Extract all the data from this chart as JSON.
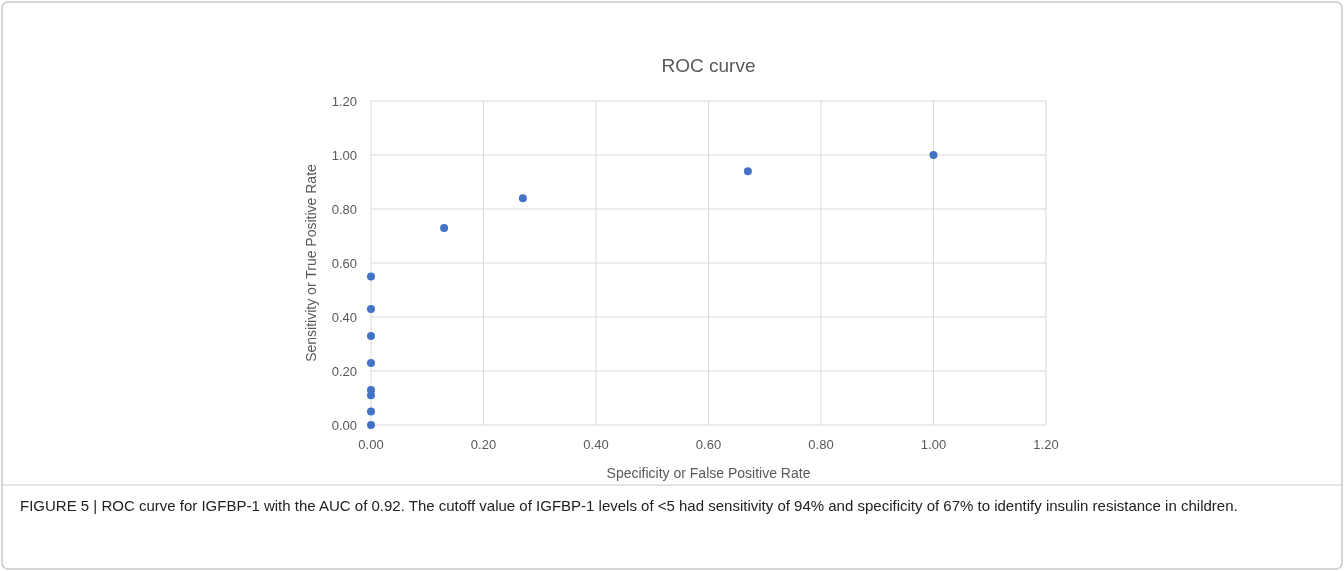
{
  "chart_data": {
    "type": "scatter",
    "title": "ROC curve",
    "xlabel": "Specificity or False Positive Rate",
    "ylabel": "Sensitivity or True Positive Rate",
    "x": [
      0,
      0,
      0,
      0,
      0,
      0,
      0,
      0,
      0.13,
      0.27,
      0.67,
      1.0
    ],
    "series": [
      {
        "color": "#4472c4",
        "values": [
          0,
          0.05,
          0.11,
          0.13,
          0.23,
          0.33,
          0.43,
          0.55,
          0.73,
          0.84,
          0.94,
          1.0
        ]
      }
    ],
    "xlim": [
      0,
      1.2
    ],
    "ylim": [
      0,
      1.2
    ],
    "xticks": [
      {
        "value": 0,
        "label": "0.00"
      },
      {
        "value": 0.2,
        "label": "0.20"
      },
      {
        "value": 0.4,
        "label": "0.40"
      },
      {
        "value": 0.6,
        "label": "0.60"
      },
      {
        "value": 0.8,
        "label": "0.80"
      },
      {
        "value": 1,
        "label": "1.00"
      },
      {
        "value": 1.2,
        "label": "1.20"
      }
    ],
    "yticks": [
      {
        "value": 0,
        "label": "0.00"
      },
      {
        "value": 0.2,
        "label": "0.20"
      },
      {
        "value": 0.4,
        "label": "0.40"
      },
      {
        "value": 0.6,
        "label": "0.60"
      },
      {
        "value": 0.8,
        "label": "0.80"
      },
      {
        "value": 1,
        "label": "1.00"
      },
      {
        "value": 1.2,
        "label": "1.20"
      }
    ],
    "grid": true,
    "marker": "circle",
    "annotations": [
      "FIGURE 5 | ROC curve for IGFBP-1 with the AUC of 0.92. The cutoff value of IGFBP-1 levels of <5 had sensitivity of 94% and specificity of 67% to identify insulin resistance in children."
    ]
  }
}
